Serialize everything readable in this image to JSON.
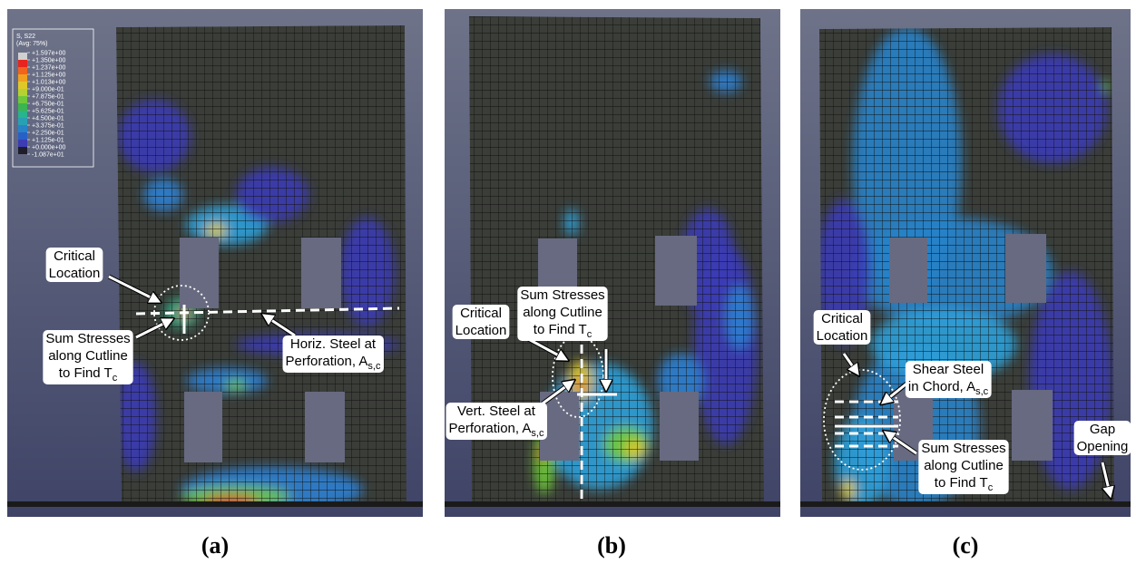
{
  "legend": {
    "title": "S, S22",
    "subtitle": "(Avg: 75%)",
    "labels": [
      "+1.597e+00",
      "+1.350e+00",
      "+1.237e+00",
      "+1.125e+00",
      "+1.013e+00",
      "+9.000e-01",
      "+7.875e-01",
      "+6.750e-01",
      "+5.625e-01",
      "+4.500e-01",
      "+3.375e-01",
      "+2.250e-01",
      "+1.125e-01",
      "+0.000e+00",
      "-1.087e+01"
    ],
    "colors": [
      "#d0d0d0",
      "#e8241e",
      "#f0641e",
      "#f0a01e",
      "#e0c828",
      "#b4d232",
      "#6ec83c",
      "#3cb450",
      "#28b48c",
      "#28a0b4",
      "#2882c8",
      "#2860c8",
      "#3c3cb4",
      "#1e1e2a"
    ]
  },
  "panels": [
    {
      "label": "(a)",
      "annotations": [
        {
          "lines": [
            "Critical",
            "Location"
          ]
        },
        {
          "lines": [
            "Sum Stresses",
            "along Cutline",
            "to Find T"
          ],
          "subscript": "c"
        },
        {
          "lines": [
            "Horiz. Steel at",
            "Perforation, A"
          ],
          "subscript": "s,c"
        }
      ]
    },
    {
      "label": "(b)",
      "annotations": [
        {
          "lines": [
            "Critical",
            "Location"
          ]
        },
        {
          "lines": [
            "Sum Stresses",
            "along Cutline",
            "to Find T"
          ],
          "subscript": "c"
        },
        {
          "lines": [
            "Vert. Steel at",
            "Perforation, A"
          ],
          "subscript": "s,c"
        }
      ]
    },
    {
      "label": "(c)",
      "annotations": [
        {
          "lines": [
            "Critical",
            "Location"
          ]
        },
        {
          "lines": [
            "Shear Steel",
            "in Chord, A"
          ],
          "subscript": "s,c"
        },
        {
          "lines": [
            "Sum Stresses",
            "along Cutline",
            "to Find T"
          ],
          "subscript": "c"
        },
        {
          "lines": [
            "Gap",
            "Opening"
          ]
        }
      ]
    }
  ]
}
